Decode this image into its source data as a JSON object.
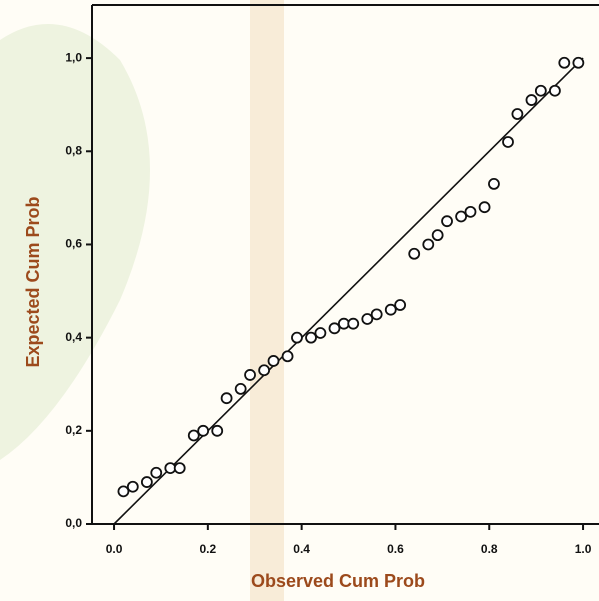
{
  "chart_data": {
    "type": "scatter",
    "x_label": "Observed Cum Prob",
    "y_label": "Expected Cum Prob",
    "xlim": [
      -0.047,
      1.034
    ],
    "ylim": [
      0,
      1.114
    ],
    "xticks": [
      {
        "value": 0,
        "label": "0.0"
      },
      {
        "value": 0.2,
        "label": "0.2"
      },
      {
        "value": 0.4,
        "label": "0.4"
      },
      {
        "value": 0.6,
        "label": "0.6"
      },
      {
        "value": 0.8,
        "label": "0.8"
      },
      {
        "value": 1,
        "label": "1.0"
      }
    ],
    "yticks": [
      {
        "value": 0,
        "label": "0,0"
      },
      {
        "value": 0.2,
        "label": "0,2"
      },
      {
        "value": 0.4,
        "label": "0,4"
      },
      {
        "value": 0.6,
        "label": "0,6"
      },
      {
        "value": 0.8,
        "label": "0,8"
      },
      {
        "value": 1,
        "label": "1,0"
      }
    ],
    "x": [
      0.02,
      0.04,
      0.07,
      0.09,
      0.12,
      0.14,
      0.17,
      0.19,
      0.22,
      0.24,
      0.27,
      0.29,
      0.32,
      0.34,
      0.37,
      0.39,
      0.42,
      0.44,
      0.47,
      0.49,
      0.51,
      0.54,
      0.56,
      0.59,
      0.61,
      0.64,
      0.67,
      0.69,
      0.71,
      0.74,
      0.76,
      0.79,
      0.81,
      0.84,
      0.86,
      0.89,
      0.91,
      0.94,
      0.96,
      0.99
    ],
    "values": [
      0.07,
      0.08,
      0.09,
      0.11,
      0.12,
      0.12,
      0.19,
      0.2,
      0.2,
      0.27,
      0.29,
      0.32,
      0.33,
      0.35,
      0.36,
      0.4,
      0.4,
      0.41,
      0.42,
      0.43,
      0.43,
      0.44,
      0.45,
      0.46,
      0.47,
      0.58,
      0.6,
      0.62,
      0.65,
      0.66,
      0.67,
      0.68,
      0.73,
      0.82,
      0.88,
      0.91,
      0.93,
      0.93,
      0.99,
      0.99
    ],
    "reference_line": {
      "x": [
        0,
        1
      ],
      "y": [
        0,
        1
      ]
    },
    "color": "#111111"
  }
}
